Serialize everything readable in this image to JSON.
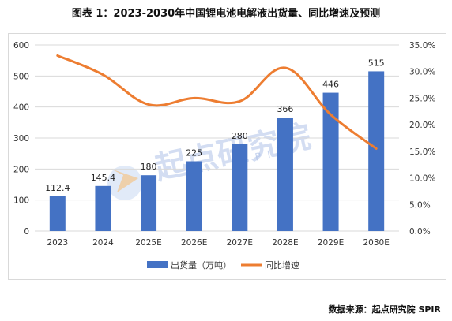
{
  "title": "图表 1：2023-2030年中国锂电池电解液出货量、同比增速及预测",
  "source": "数据来源：起点研究院 SPIR",
  "watermark": {
    "text": "起点研究院",
    "sub": "SPIR"
  },
  "chart_data": {
    "type": "bar+line",
    "categories": [
      "2023",
      "2024",
      "2025E",
      "2026E",
      "2027E",
      "2028E",
      "2029E",
      "2030E"
    ],
    "series": [
      {
        "name": "出货量（万吨）",
        "type": "bar",
        "axis": "left",
        "color": "#4472C4",
        "values": [
          112.4,
          145.4,
          180,
          225,
          280,
          366,
          446,
          515
        ],
        "labels": [
          "112.4",
          "145.4",
          "180",
          "225",
          "280",
          "366",
          "446",
          "515"
        ]
      },
      {
        "name": "同比增速",
        "type": "line",
        "axis": "right",
        "color": "#ED7D31",
        "values": [
          33.0,
          29.4,
          23.8,
          25.0,
          24.4,
          30.7,
          21.9,
          15.5
        ]
      }
    ],
    "y_left": {
      "ticks": [
        "0",
        "100",
        "200",
        "300",
        "400",
        "500",
        "600"
      ],
      "range": [
        0,
        600
      ]
    },
    "y_right": {
      "ticks": [
        "0.0%",
        "5.0%",
        "10.0%",
        "15.0%",
        "20.0%",
        "25.0%",
        "30.0%",
        "35.0%"
      ],
      "range": [
        0,
        35
      ]
    },
    "grid": true,
    "legend": "bottom"
  }
}
